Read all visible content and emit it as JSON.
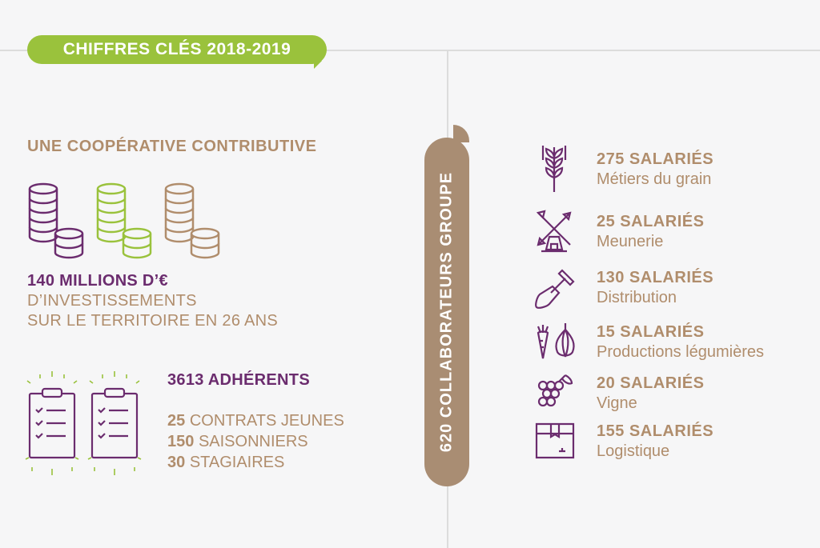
{
  "header": {
    "badge_text": "CHIFFRES CLÉS 2018-2019"
  },
  "left": {
    "heading": "UNE COOPÉRATIVE CONTRIBUTIVE",
    "investment": {
      "amount": "140 MILLIONS D’€",
      "line1": "D’INVESTISSEMENTS",
      "line2": "SUR LE TERRITOIRE EN 26 ANS"
    },
    "members": {
      "adherents": "3613 ADHÉRENTS",
      "stats": [
        {
          "num": "25",
          "label": "CONTRATS JEUNES"
        },
        {
          "num": "150",
          "label": "SAISONNIERS"
        },
        {
          "num": "30",
          "label": "STAGIAIRES"
        }
      ]
    },
    "icons": {
      "coins": [
        "coin-stack-icon",
        "coin-stack-icon",
        "coin-stack-icon"
      ],
      "clipboards": [
        "clipboard-checklist-icon",
        "clipboard-checklist-icon"
      ]
    }
  },
  "center": {
    "vertical_label": "620 COLLABORATEURS GROUPE"
  },
  "right": {
    "employees": [
      {
        "count": "275 SALARIÉS",
        "label": "Métiers du grain",
        "icon": "wheat-icon"
      },
      {
        "count": "25 SALARIÉS",
        "label": "Meunerie",
        "icon": "windmill-icon"
      },
      {
        "count": "130 SALARIÉS",
        "label": "Distribution",
        "icon": "shovel-icon"
      },
      {
        "count": "15 SALARIÉS",
        "label": "Productions légumières",
        "icon": "vegetables-icon"
      },
      {
        "count": "20 SALARIÉS",
        "label": "Vigne",
        "icon": "grapes-icon"
      },
      {
        "count": "155 SALARIÉS",
        "label": "Logistique",
        "icon": "box-icon"
      }
    ]
  },
  "colors": {
    "green": "#9ac23c",
    "purple": "#6b2c6e",
    "brown": "#b08d6c",
    "pill": "#a98d73"
  }
}
